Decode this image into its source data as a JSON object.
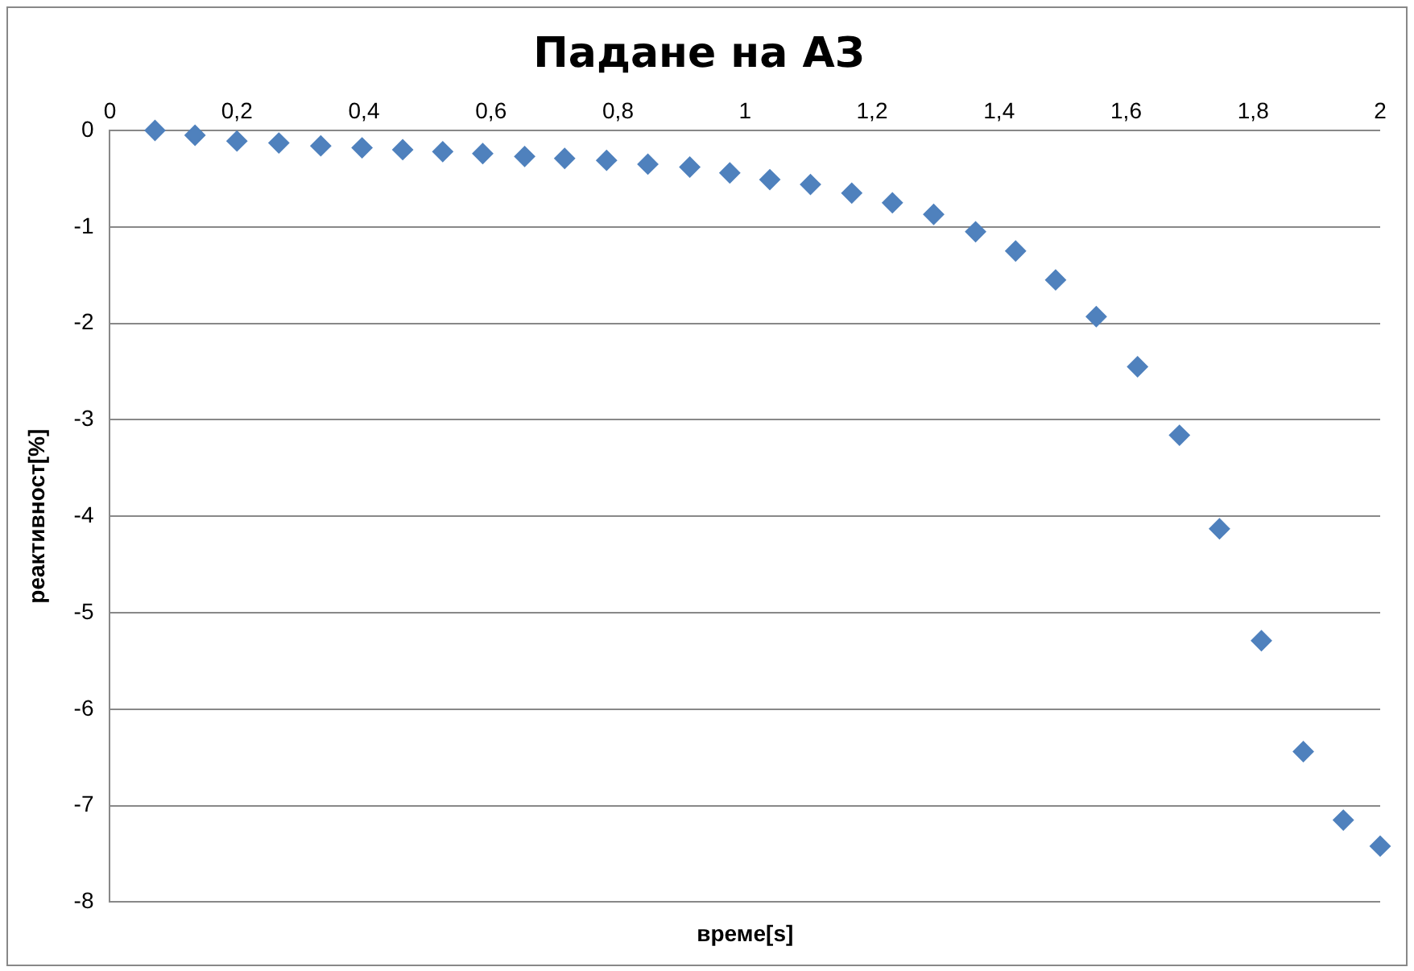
{
  "chart_data": {
    "type": "scatter",
    "title": "Падане на АЗ",
    "xlabel": "време[s]",
    "ylabel": "реактивност[%]",
    "x": [
      0.071,
      0.134,
      0.2,
      0.266,
      0.332,
      0.397,
      0.461,
      0.524,
      0.587,
      0.653,
      0.716,
      0.782,
      0.847,
      0.913,
      0.976,
      1.039,
      1.103,
      1.168,
      1.232,
      1.297,
      1.363,
      1.426,
      1.489,
      1.553,
      1.618,
      1.684,
      1.747,
      1.813,
      1.879,
      1.942,
      2.0
    ],
    "series": [
      {
        "color": "#4f81bd",
        "values": [
          0,
          -0.05,
          -0.11,
          -0.13,
          -0.16,
          -0.18,
          -0.2,
          -0.22,
          -0.24,
          -0.27,
          -0.29,
          -0.31,
          -0.35,
          -0.38,
          -0.44,
          -0.51,
          -0.56,
          -0.65,
          -0.75,
          -0.87,
          -1.05,
          -1.25,
          -1.55,
          -1.93,
          -2.45,
          -3.16,
          -4.13,
          -5.29,
          -6.44,
          -7.15,
          -7.42
        ]
      }
    ],
    "xlim": [
      0,
      2
    ],
    "xticks": [
      0,
      {
        "value": 0.2,
        "label": "0,2"
      },
      {
        "value": 0.4,
        "label": "0,4"
      },
      {
        "value": 0.6,
        "label": "0,6"
      },
      {
        "value": 0.8,
        "label": "0,8"
      },
      1,
      {
        "value": 1.2,
        "label": "1,2"
      },
      {
        "value": 1.4,
        "label": "1,4"
      },
      {
        "value": 1.6,
        "label": "1,6"
      },
      {
        "value": 1.8,
        "label": "1,8"
      },
      2
    ],
    "ylim": [
      -8,
      0
    ],
    "yticks": [
      -8,
      -7,
      -6,
      -5,
      -4,
      -3,
      -2,
      -1,
      0
    ],
    "grid": "y",
    "legend": false,
    "marker": "diamond"
  }
}
